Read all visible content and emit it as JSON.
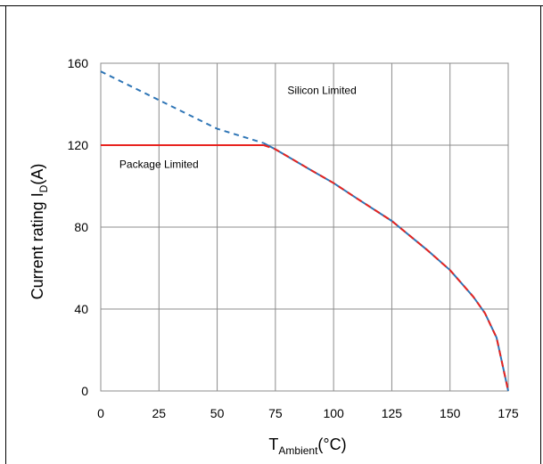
{
  "chart_data": {
    "type": "line",
    "xlabel_main": "T",
    "xlabel_sub": "Ambient",
    "xlabel_unit": "(°C)",
    "ylabel_main": "Current rating I",
    "ylabel_sub": "D",
    "ylabel_unit": "(A)",
    "xlim": [
      0,
      175
    ],
    "ylim": [
      0,
      160
    ],
    "xticks": [
      0,
      25,
      50,
      75,
      100,
      125,
      150,
      175
    ],
    "yticks": [
      0,
      40,
      80,
      120,
      160
    ],
    "grid": true,
    "annotations": [
      {
        "text": "Silicon Limited",
        "x": 95,
        "y": 145
      },
      {
        "text": "Package Limited",
        "x": 25,
        "y": 109
      }
    ],
    "series": [
      {
        "name": "Silicon Limited",
        "color": "#2e75b6",
        "style": "dashed-then-solid",
        "x": [
          0,
          25,
          50,
          70,
          75,
          90,
          100,
          110,
          125,
          140,
          150,
          160,
          165,
          170,
          175
        ],
        "y": [
          156,
          142,
          128,
          121,
          118,
          108,
          101.5,
          94,
          83,
          69,
          59,
          46,
          38,
          26,
          0
        ]
      },
      {
        "name": "Package Limited",
        "color": "#e8231f",
        "style": "solid-then-dashed",
        "x": [
          0,
          70,
          75,
          90,
          100,
          110,
          125,
          140,
          150,
          160,
          165,
          170,
          175
        ],
        "y": [
          120,
          120,
          118,
          108,
          101.5,
          94,
          83,
          69,
          59,
          46,
          38,
          26,
          0
        ]
      }
    ]
  }
}
